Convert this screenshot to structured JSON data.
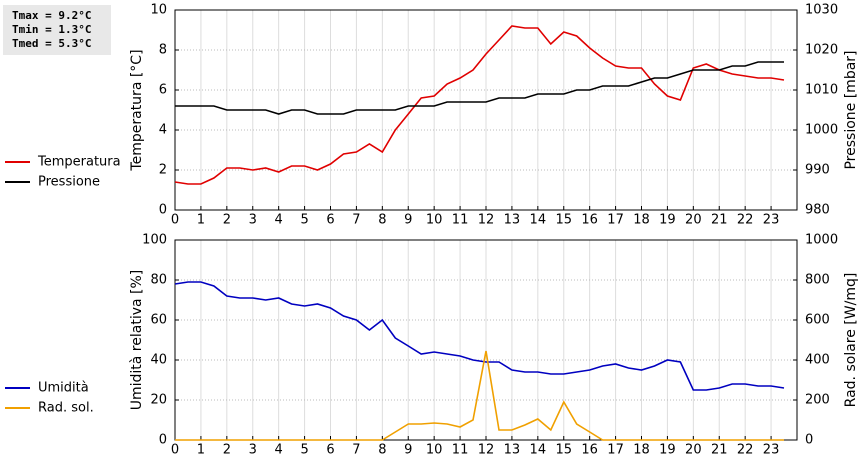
{
  "chart_data": [
    {
      "type": "line",
      "annotations": [
        "Tmax =  9.2°C",
        "Tmin =  1.3°C",
        "Tmed =  5.3°C"
      ],
      "y_label": "Temperatura [°C]",
      "y2_label": "Pressione [mbar]",
      "grid": true,
      "legend": "left",
      "x": [
        0,
        0.5,
        1,
        1.5,
        2,
        2.5,
        3,
        3.5,
        4,
        4.5,
        5,
        5.5,
        6,
        6.5,
        7,
        7.5,
        8,
        8.5,
        9,
        9.5,
        10,
        10.5,
        11,
        11.5,
        12,
        12.5,
        13,
        13.5,
        14,
        14.5,
        15,
        15.5,
        16,
        16.5,
        17,
        17.5,
        18,
        18.5,
        19,
        19.5,
        20,
        20.5,
        21,
        21.5,
        22,
        22.5,
        23,
        23.5
      ],
      "xlim": [
        0,
        24
      ],
      "xticks": [
        0,
        1,
        2,
        3,
        4,
        5,
        6,
        7,
        8,
        9,
        10,
        11,
        12,
        13,
        14,
        15,
        16,
        17,
        18,
        19,
        20,
        21,
        22,
        23
      ],
      "ylim": [
        0,
        10
      ],
      "yticks": [
        0,
        2,
        4,
        6,
        8,
        10
      ],
      "y2lim": [
        980,
        1030
      ],
      "y2ticks": [
        980,
        990,
        1000,
        1010,
        1020,
        1030
      ],
      "series": [
        {
          "name": "Temperatura",
          "color": "#e00000",
          "values": [
            1.4,
            1.3,
            1.3,
            1.6,
            2.1,
            2.1,
            2.0,
            2.1,
            1.9,
            2.2,
            2.2,
            2.0,
            2.3,
            2.8,
            2.9,
            3.3,
            2.9,
            4.0,
            4.8,
            5.6,
            5.7,
            6.3,
            6.6,
            7.0,
            7.8,
            8.5,
            9.2,
            9.1,
            9.1,
            8.3,
            8.9,
            8.7,
            8.1,
            7.6,
            7.2,
            7.1,
            7.1,
            6.3,
            5.7,
            5.5,
            7.1,
            7.3,
            7.0,
            6.8,
            6.7,
            6.6,
            6.6,
            6.5
          ]
        },
        {
          "name": "Pressione",
          "color": "#000000",
          "axis": "y2",
          "values": [
            1006,
            1006,
            1006,
            1006,
            1005,
            1005,
            1005,
            1005,
            1004,
            1005,
            1005,
            1004,
            1004,
            1004,
            1005,
            1005,
            1005,
            1005,
            1006,
            1006,
            1006,
            1007,
            1007,
            1007,
            1007,
            1008,
            1008,
            1008,
            1009,
            1009,
            1009,
            1010,
            1010,
            1011,
            1011,
            1011,
            1012,
            1013,
            1013,
            1014,
            1015,
            1015,
            1015,
            1016,
            1016,
            1017,
            1017,
            1017
          ]
        }
      ]
    },
    {
      "type": "line",
      "y_label": "Umidità relativa [%]",
      "y2_label": "Rad. solare [W/mq]",
      "grid": true,
      "legend": "left",
      "x": [
        0,
        0.5,
        1,
        1.5,
        2,
        2.5,
        3,
        3.5,
        4,
        4.5,
        5,
        5.5,
        6,
        6.5,
        7,
        7.5,
        8,
        8.5,
        9,
        9.5,
        10,
        10.5,
        11,
        11.5,
        12,
        12.5,
        13,
        13.5,
        14,
        14.5,
        15,
        15.5,
        16,
        16.5,
        17,
        17.5,
        18,
        18.5,
        19,
        19.5,
        20,
        20.5,
        21,
        21.5,
        22,
        22.5,
        23,
        23.5
      ],
      "xlim": [
        0,
        24
      ],
      "xticks": [
        0,
        1,
        2,
        3,
        4,
        5,
        6,
        7,
        8,
        9,
        10,
        11,
        12,
        13,
        14,
        15,
        16,
        17,
        18,
        19,
        20,
        21,
        22,
        23
      ],
      "ylim": [
        0,
        100
      ],
      "yticks": [
        0,
        20,
        40,
        60,
        80,
        100
      ],
      "y2lim": [
        0,
        1000
      ],
      "y2ticks": [
        0,
        200,
        400,
        600,
        800,
        1000
      ],
      "series": [
        {
          "name": "Umidità",
          "color": "#0000c0",
          "values": [
            78,
            79,
            79,
            77,
            72,
            71,
            71,
            70,
            71,
            68,
            67,
            68,
            66,
            62,
            60,
            55,
            60,
            51,
            47,
            43,
            44,
            43,
            42,
            40,
            39,
            39,
            35,
            34,
            34,
            33,
            33,
            34,
            35,
            37,
            38,
            36,
            35,
            37,
            40,
            39,
            25,
            25,
            26,
            28,
            28,
            27,
            27,
            26
          ]
        },
        {
          "name": "Rad. sol.",
          "color": "#f0a000",
          "axis": "y2",
          "values": [
            0,
            0,
            0,
            0,
            0,
            0,
            0,
            0,
            0,
            0,
            0,
            0,
            0,
            0,
            0,
            0,
            0,
            40,
            80,
            80,
            85,
            80,
            65,
            100,
            445,
            50,
            50,
            75,
            105,
            50,
            190,
            80,
            40,
            0,
            0,
            0,
            0,
            0,
            0,
            0,
            0,
            0,
            0,
            0,
            0,
            0,
            0,
            0
          ]
        }
      ]
    }
  ]
}
